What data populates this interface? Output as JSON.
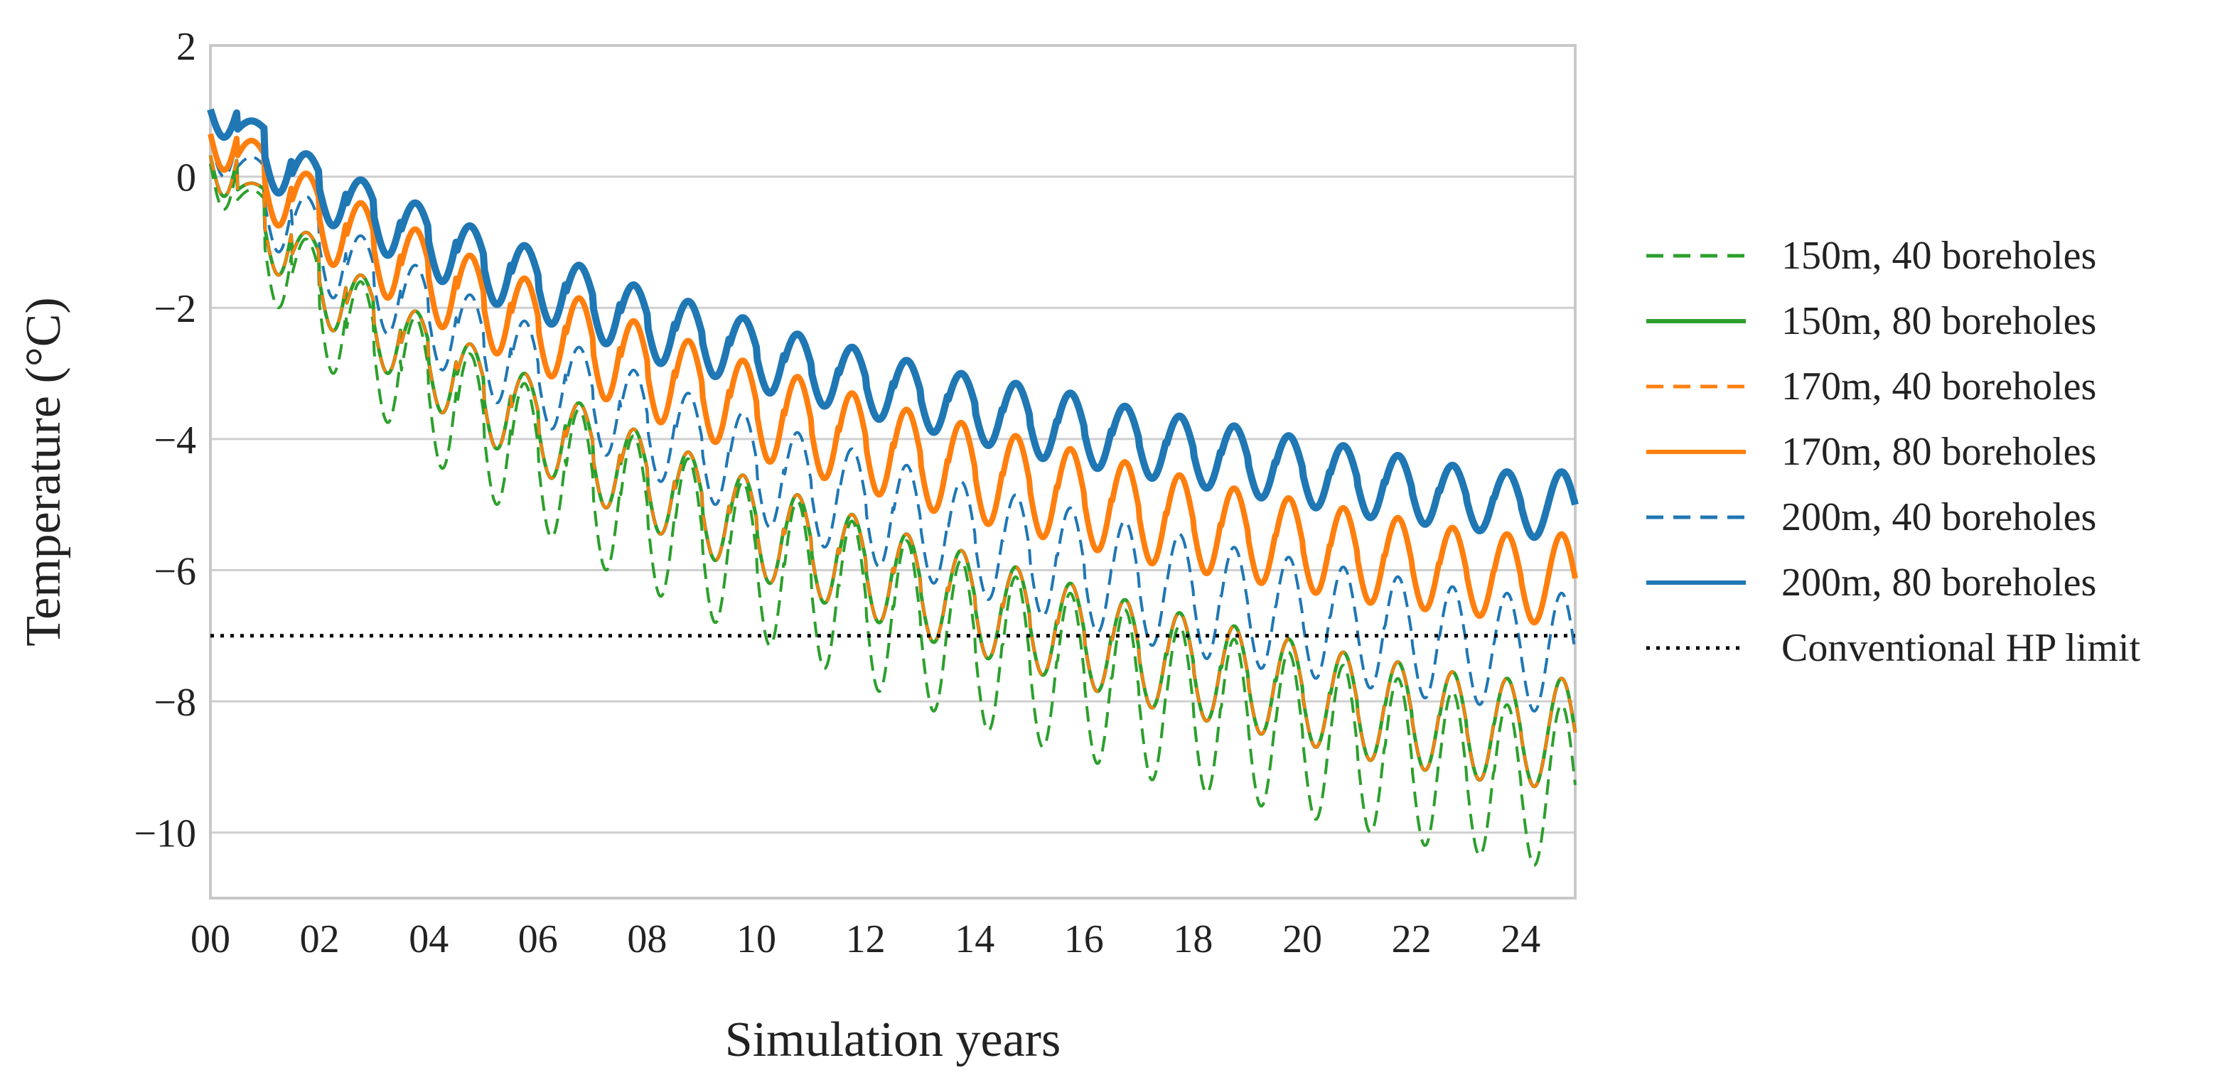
{
  "chart_data": {
    "type": "line",
    "title": "",
    "xlabel": "Simulation years",
    "ylabel": "Temperature (°C)",
    "xlim": [
      0,
      25
    ],
    "ylim": [
      -11,
      2
    ],
    "grid": "horizontal",
    "legend_position": "right",
    "x_ticks": [
      0,
      2,
      4,
      6,
      8,
      10,
      12,
      14,
      16,
      18,
      20,
      22,
      24
    ],
    "x_tick_labels": [
      "00",
      "02",
      "04",
      "06",
      "08",
      "10",
      "12",
      "14",
      "16",
      "18",
      "20",
      "22",
      "24"
    ],
    "y_ticks": [
      2,
      0,
      -2,
      -4,
      -6,
      -8,
      -10
    ],
    "y_tick_labels": [
      "2",
      "0",
      "−2",
      "−4",
      "−6",
      "−8",
      "−10"
    ],
    "series": [
      {
        "name": "150m, 40 boreholes",
        "color": "#2ca02c",
        "style": "dashed",
        "annual_peaks": [
          0.9,
          -0.2,
          -0.95,
          -1.6,
          -2.15,
          -2.7,
          -3.15,
          -3.55,
          -3.95,
          -4.3,
          -4.65,
          -4.95,
          -5.25,
          -5.55,
          -5.85,
          -6.1,
          -6.35,
          -6.6,
          -6.85,
          -7.05,
          -7.25,
          -7.45,
          -7.65,
          -7.85,
          -8.05
        ],
        "annual_troughs": [
          -0.5,
          -2.0,
          -3.0,
          -3.75,
          -4.45,
          -5.0,
          -5.5,
          -6.0,
          -6.4,
          -6.8,
          -7.15,
          -7.5,
          -7.85,
          -8.15,
          -8.45,
          -8.7,
          -8.95,
          -9.2,
          -9.4,
          -9.6,
          -9.8,
          -10.0,
          -10.2,
          -10.35,
          -10.5
        ]
      },
      {
        "name": "150m, 80 boreholes",
        "color": "#2ca02c",
        "style": "solid",
        "annual_peaks": [
          0.95,
          -0.1,
          -0.85,
          -1.5,
          -2.05,
          -2.55,
          -3.0,
          -3.45,
          -3.85,
          -4.2,
          -4.55,
          -4.85,
          -5.15,
          -5.45,
          -5.7,
          -5.95,
          -6.2,
          -6.45,
          -6.65,
          -6.85,
          -7.05,
          -7.25,
          -7.4,
          -7.55,
          -7.65
        ],
        "annual_troughs": [
          -0.3,
          -1.5,
          -2.35,
          -3.0,
          -3.6,
          -4.15,
          -4.6,
          -5.05,
          -5.45,
          -5.85,
          -6.2,
          -6.5,
          -6.8,
          -7.1,
          -7.35,
          -7.6,
          -7.85,
          -8.1,
          -8.3,
          -8.5,
          -8.7,
          -8.9,
          -9.05,
          -9.2,
          -9.3
        ]
      },
      {
        "name": "170m, 40 boreholes",
        "color": "#ff7f0e",
        "style": "dashed",
        "annual_peaks": [
          0.95,
          -0.1,
          -0.85,
          -1.5,
          -2.05,
          -2.55,
          -3.0,
          -3.45,
          -3.85,
          -4.2,
          -4.55,
          -4.85,
          -5.15,
          -5.45,
          -5.7,
          -5.95,
          -6.2,
          -6.45,
          -6.65,
          -6.85,
          -7.05,
          -7.25,
          -7.4,
          -7.55,
          -7.65
        ],
        "annual_troughs": [
          -0.3,
          -1.5,
          -2.35,
          -3.0,
          -3.6,
          -4.15,
          -4.6,
          -5.05,
          -5.45,
          -5.85,
          -6.2,
          -6.5,
          -6.8,
          -7.1,
          -7.35,
          -7.6,
          -7.85,
          -8.1,
          -8.3,
          -8.5,
          -8.7,
          -8.9,
          -9.05,
          -9.2,
          -9.3
        ]
      },
      {
        "name": "170m, 80 boreholes",
        "color": "#ff7f0e",
        "style": "solid",
        "annual_peaks": [
          1.2,
          0.55,
          0.05,
          -0.4,
          -0.8,
          -1.2,
          -1.55,
          -1.85,
          -2.2,
          -2.5,
          -2.8,
          -3.05,
          -3.3,
          -3.55,
          -3.75,
          -3.95,
          -4.15,
          -4.35,
          -4.55,
          -4.75,
          -4.9,
          -5.05,
          -5.2,
          -5.35,
          -5.45
        ],
        "annual_troughs": [
          0.1,
          -0.75,
          -1.35,
          -1.85,
          -2.3,
          -2.7,
          -3.05,
          -3.4,
          -3.75,
          -4.05,
          -4.35,
          -4.6,
          -4.85,
          -5.1,
          -5.3,
          -5.5,
          -5.7,
          -5.9,
          -6.05,
          -6.2,
          -6.35,
          -6.5,
          -6.6,
          -6.7,
          -6.8
        ]
      },
      {
        "name": "200m, 40 boreholes",
        "color": "#1f77b4",
        "style": "dashed",
        "annual_peaks": [
          1.15,
          0.3,
          -0.3,
          -0.9,
          -1.35,
          -1.8,
          -2.2,
          -2.6,
          -2.95,
          -3.3,
          -3.6,
          -3.9,
          -4.15,
          -4.4,
          -4.65,
          -4.85,
          -5.05,
          -5.25,
          -5.45,
          -5.65,
          -5.8,
          -5.95,
          -6.1,
          -6.25,
          -6.35
        ],
        "annual_troughs": [
          0.0,
          -1.15,
          -1.85,
          -2.4,
          -2.95,
          -3.45,
          -3.85,
          -4.25,
          -4.65,
          -5.0,
          -5.35,
          -5.65,
          -5.95,
          -6.2,
          -6.45,
          -6.7,
          -6.95,
          -7.15,
          -7.35,
          -7.5,
          -7.65,
          -7.8,
          -7.95,
          -8.05,
          -8.15
        ]
      },
      {
        "name": "200m, 80 boreholes",
        "color": "#1f77b4",
        "style": "solid",
        "annual_peaks": [
          1.45,
          0.85,
          0.35,
          -0.05,
          -0.4,
          -0.75,
          -1.05,
          -1.35,
          -1.65,
          -1.9,
          -2.15,
          -2.4,
          -2.6,
          -2.8,
          -3.0,
          -3.15,
          -3.3,
          -3.5,
          -3.65,
          -3.8,
          -3.95,
          -4.1,
          -4.25,
          -4.4,
          -4.5
        ],
        "annual_troughs": [
          0.6,
          -0.25,
          -0.75,
          -1.2,
          -1.6,
          -1.95,
          -2.25,
          -2.55,
          -2.85,
          -3.05,
          -3.3,
          -3.5,
          -3.7,
          -3.9,
          -4.1,
          -4.3,
          -4.45,
          -4.6,
          -4.75,
          -4.9,
          -5.05,
          -5.2,
          -5.3,
          -5.4,
          -5.5
        ]
      },
      {
        "name": "Conventional HP limit",
        "color": "#000000",
        "style": "dotted",
        "x": [
          0,
          25
        ],
        "values": [
          -7,
          -7
        ]
      }
    ]
  }
}
